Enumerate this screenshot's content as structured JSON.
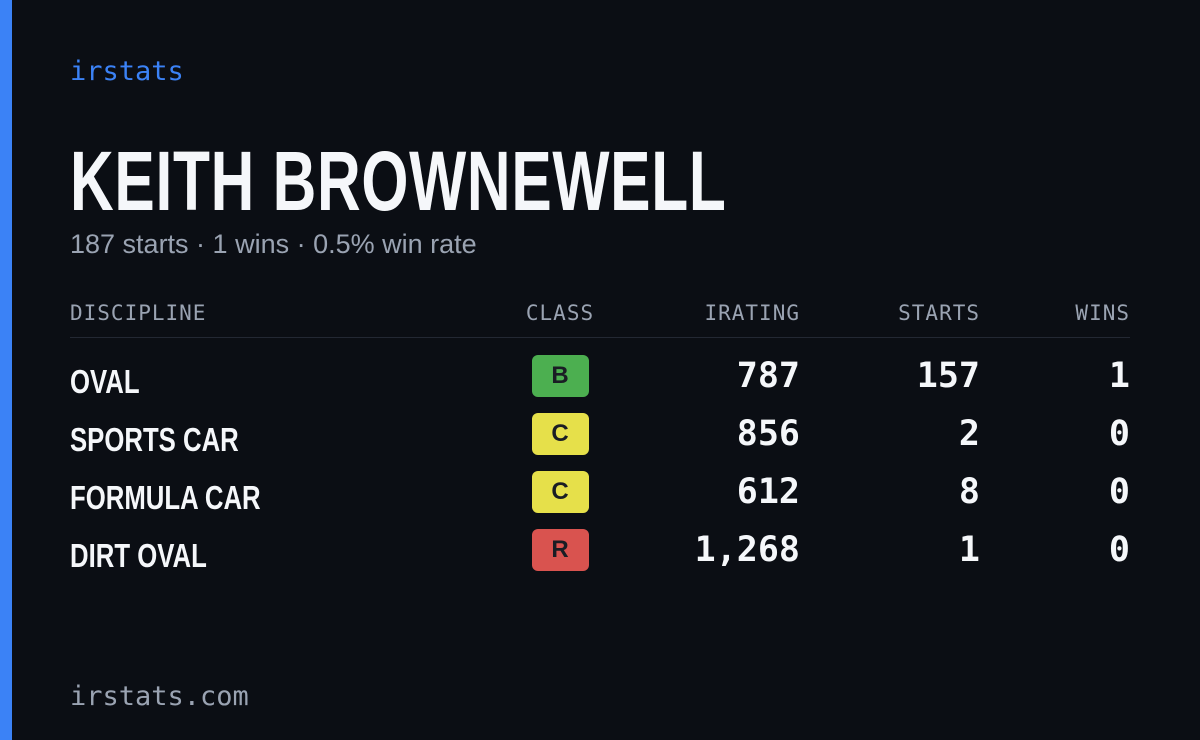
{
  "brand": "irstats",
  "driver": {
    "name": "KEITH BROWNEWELL",
    "summary": "187 starts · 1 wins · 0.5% win rate"
  },
  "table": {
    "headers": [
      "DISCIPLINE",
      "CLASS",
      "IRATING",
      "STARTS",
      "WINS"
    ],
    "rows": [
      {
        "discipline": "OVAL",
        "class": "B",
        "class_color": "#4caf50",
        "irating": 787,
        "starts": 157,
        "wins": 1
      },
      {
        "discipline": "SPORTS CAR",
        "class": "C",
        "class_color": "#e6e04a",
        "irating": 856,
        "starts": 2,
        "wins": 0
      },
      {
        "discipline": "FORMULA CAR",
        "class": "C",
        "class_color": "#e6e04a",
        "irating": 612,
        "starts": 8,
        "wins": 0
      },
      {
        "discipline": "DIRT OVAL",
        "class": "R",
        "class_color": "#d9534f",
        "irating": "1,268",
        "starts": 1,
        "wins": 0
      }
    ]
  },
  "footer": "irstats.com"
}
